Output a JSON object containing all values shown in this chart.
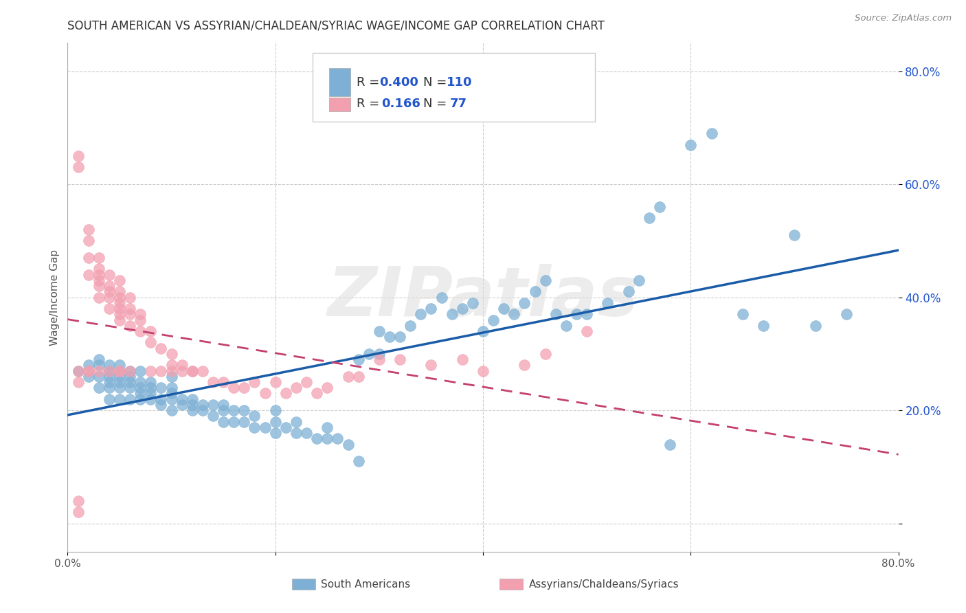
{
  "title": "SOUTH AMERICAN VS ASSYRIAN/CHALDEAN/SYRIAC WAGE/INCOME GAP CORRELATION CHART",
  "source": "Source: ZipAtlas.com",
  "ylabel": "Wage/Income Gap",
  "xlim": [
    0,
    0.8
  ],
  "ylim": [
    -0.05,
    0.85
  ],
  "yticks": [
    0.0,
    0.2,
    0.4,
    0.6,
    0.8
  ],
  "ytick_labels": [
    "",
    "20.0%",
    "40.0%",
    "60.0%",
    "80.0%"
  ],
  "blue_R": 0.4,
  "blue_N": 110,
  "pink_R": 0.166,
  "pink_N": 77,
  "blue_color": "#7EB0D5",
  "pink_color": "#F2A0B0",
  "trendline_blue_color": "#1A5CA8",
  "trendline_pink_color": "#C44070",
  "watermark": "ZIPatlas",
  "title_fontsize": 12,
  "blue_scatter_x": [
    0.01,
    0.02,
    0.02,
    0.03,
    0.03,
    0.03,
    0.03,
    0.04,
    0.04,
    0.04,
    0.04,
    0.04,
    0.04,
    0.05,
    0.05,
    0.05,
    0.05,
    0.05,
    0.05,
    0.06,
    0.06,
    0.06,
    0.06,
    0.06,
    0.07,
    0.07,
    0.07,
    0.07,
    0.07,
    0.08,
    0.08,
    0.08,
    0.08,
    0.09,
    0.09,
    0.09,
    0.1,
    0.1,
    0.1,
    0.1,
    0.1,
    0.11,
    0.11,
    0.12,
    0.12,
    0.12,
    0.13,
    0.13,
    0.14,
    0.14,
    0.15,
    0.15,
    0.15,
    0.16,
    0.16,
    0.17,
    0.17,
    0.18,
    0.18,
    0.19,
    0.2,
    0.2,
    0.2,
    0.21,
    0.22,
    0.22,
    0.23,
    0.24,
    0.25,
    0.25,
    0.26,
    0.27,
    0.28,
    0.28,
    0.29,
    0.3,
    0.3,
    0.31,
    0.32,
    0.33,
    0.34,
    0.35,
    0.36,
    0.37,
    0.38,
    0.39,
    0.4,
    0.41,
    0.42,
    0.43,
    0.44,
    0.45,
    0.46,
    0.47,
    0.48,
    0.49,
    0.5,
    0.52,
    0.54,
    0.55,
    0.56,
    0.57,
    0.58,
    0.6,
    0.62,
    0.65,
    0.67,
    0.7,
    0.72,
    0.75
  ],
  "blue_scatter_y": [
    0.27,
    0.26,
    0.28,
    0.24,
    0.26,
    0.28,
    0.29,
    0.22,
    0.24,
    0.25,
    0.26,
    0.27,
    0.28,
    0.22,
    0.24,
    0.25,
    0.26,
    0.27,
    0.28,
    0.22,
    0.24,
    0.25,
    0.26,
    0.27,
    0.22,
    0.23,
    0.24,
    0.25,
    0.27,
    0.22,
    0.23,
    0.24,
    0.25,
    0.21,
    0.22,
    0.24,
    0.2,
    0.22,
    0.23,
    0.24,
    0.26,
    0.21,
    0.22,
    0.2,
    0.21,
    0.22,
    0.2,
    0.21,
    0.19,
    0.21,
    0.18,
    0.2,
    0.21,
    0.18,
    0.2,
    0.18,
    0.2,
    0.17,
    0.19,
    0.17,
    0.16,
    0.18,
    0.2,
    0.17,
    0.16,
    0.18,
    0.16,
    0.15,
    0.15,
    0.17,
    0.15,
    0.14,
    0.11,
    0.29,
    0.3,
    0.3,
    0.34,
    0.33,
    0.33,
    0.35,
    0.37,
    0.38,
    0.4,
    0.37,
    0.38,
    0.39,
    0.34,
    0.36,
    0.38,
    0.37,
    0.39,
    0.41,
    0.43,
    0.37,
    0.35,
    0.37,
    0.37,
    0.39,
    0.41,
    0.43,
    0.54,
    0.56,
    0.14,
    0.67,
    0.69,
    0.37,
    0.35,
    0.51,
    0.35,
    0.37
  ],
  "pink_scatter_x": [
    0.01,
    0.01,
    0.01,
    0.01,
    0.01,
    0.01,
    0.02,
    0.02,
    0.02,
    0.02,
    0.02,
    0.02,
    0.03,
    0.03,
    0.03,
    0.03,
    0.03,
    0.03,
    0.03,
    0.04,
    0.04,
    0.04,
    0.04,
    0.04,
    0.04,
    0.05,
    0.05,
    0.05,
    0.05,
    0.05,
    0.05,
    0.05,
    0.05,
    0.05,
    0.06,
    0.06,
    0.06,
    0.06,
    0.06,
    0.07,
    0.07,
    0.07,
    0.08,
    0.08,
    0.08,
    0.09,
    0.09,
    0.1,
    0.1,
    0.1,
    0.11,
    0.11,
    0.12,
    0.12,
    0.13,
    0.14,
    0.15,
    0.16,
    0.17,
    0.18,
    0.19,
    0.2,
    0.21,
    0.22,
    0.23,
    0.24,
    0.25,
    0.27,
    0.28,
    0.3,
    0.32,
    0.35,
    0.38,
    0.4,
    0.44,
    0.46,
    0.5
  ],
  "pink_scatter_y": [
    0.02,
    0.04,
    0.25,
    0.27,
    0.65,
    0.63,
    0.27,
    0.44,
    0.47,
    0.5,
    0.52,
    0.27,
    0.4,
    0.42,
    0.43,
    0.44,
    0.45,
    0.47,
    0.27,
    0.38,
    0.4,
    0.41,
    0.42,
    0.44,
    0.27,
    0.36,
    0.37,
    0.38,
    0.39,
    0.4,
    0.41,
    0.43,
    0.27,
    0.27,
    0.35,
    0.37,
    0.38,
    0.4,
    0.27,
    0.34,
    0.36,
    0.37,
    0.27,
    0.32,
    0.34,
    0.27,
    0.31,
    0.27,
    0.28,
    0.3,
    0.27,
    0.28,
    0.27,
    0.27,
    0.27,
    0.25,
    0.25,
    0.24,
    0.24,
    0.25,
    0.23,
    0.25,
    0.23,
    0.24,
    0.25,
    0.23,
    0.24,
    0.26,
    0.26,
    0.29,
    0.29,
    0.28,
    0.29,
    0.27,
    0.28,
    0.3,
    0.34
  ]
}
